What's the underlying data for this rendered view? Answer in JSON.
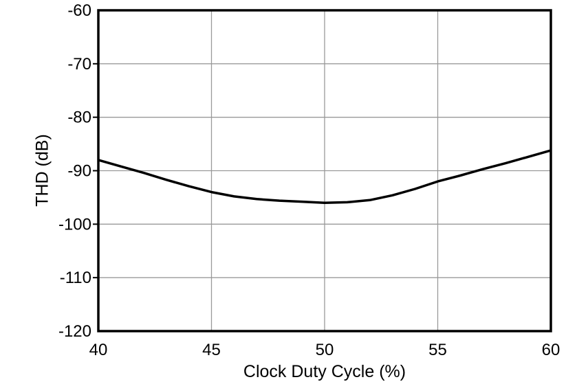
{
  "chart_data": {
    "type": "line",
    "title": "",
    "xlabel": "Clock Duty Cycle (%)",
    "ylabel": "THD (dB)",
    "xlim": [
      40,
      60
    ],
    "ylim": [
      -120,
      -60
    ],
    "x_ticks": [
      40,
      45,
      50,
      55,
      60
    ],
    "y_ticks": [
      -60,
      -70,
      -80,
      -90,
      -100,
      -110,
      -120
    ],
    "grid": true,
    "legend_position": "none",
    "series": [
      {
        "name": "THD",
        "x": [
          40,
          41,
          42,
          43,
          44,
          45,
          46,
          47,
          48,
          49,
          50,
          51,
          52,
          53,
          54,
          55,
          56,
          57,
          58,
          59,
          60
        ],
        "y": [
          -88.0,
          -89.2,
          -90.4,
          -91.7,
          -92.9,
          -94.0,
          -94.8,
          -95.3,
          -95.6,
          -95.8,
          -96.0,
          -95.9,
          -95.5,
          -94.6,
          -93.4,
          -92.0,
          -90.9,
          -89.7,
          -88.6,
          -87.4,
          -86.2
        ]
      }
    ]
  },
  "colors": {
    "background": "#ffffff",
    "axis": "#000000",
    "grid": "#999999",
    "line": "#000000",
    "text": "#000000"
  }
}
